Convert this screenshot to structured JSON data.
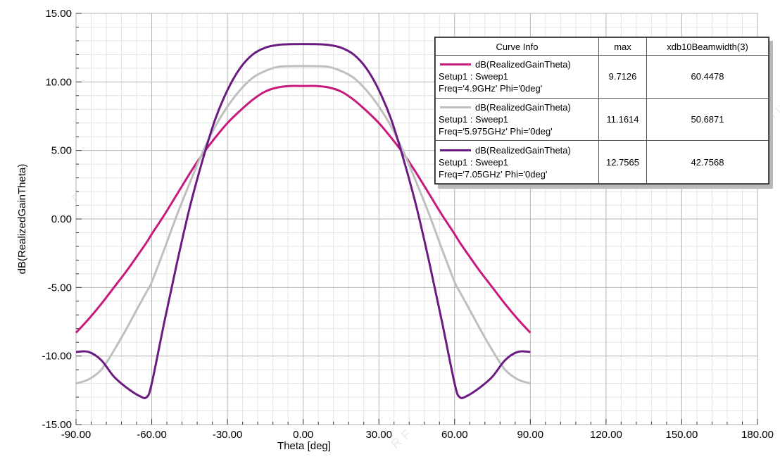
{
  "chart_data": {
    "type": "line",
    "xlabel": "Theta [deg]",
    "ylabel": "dB(RealizedGainTheta)",
    "xlim": [
      -90,
      180
    ],
    "ylim": [
      -15,
      15
    ],
    "xticks": [
      "-90.00",
      "-60.00",
      "-30.00",
      "0.00",
      "30.00",
      "60.00",
      "90.00",
      "120.00",
      "150.00",
      "180.00"
    ],
    "yticks": [
      "15.00",
      "10.00",
      "5.00",
      "0.00",
      "-5.00",
      "-10.00",
      "-15.00"
    ],
    "x": [
      -90,
      -85,
      -80,
      -75,
      -70,
      -65,
      -62,
      -60,
      -55,
      -50,
      -45,
      -40,
      -35,
      -30,
      -25,
      -20,
      -15,
      -10,
      -5,
      0,
      5,
      10,
      15,
      20,
      25,
      30,
      35,
      40,
      45,
      50,
      55,
      60,
      62,
      65,
      70,
      75,
      80,
      85,
      90
    ],
    "grid": true,
    "series": [
      {
        "name": "dB(RealizedGainTheta) Setup1 : Sweep1 Freq='4.9GHz' Phi='0deg'",
        "color": "#c8197d",
        "values": [
          -8.3,
          -7.3,
          -6.2,
          -5.0,
          -3.8,
          -2.5,
          -1.7,
          -1.1,
          0.3,
          1.8,
          3.3,
          4.7,
          5.9,
          7.0,
          7.9,
          8.7,
          9.3,
          9.6,
          9.7,
          9.7,
          9.7,
          9.6,
          9.3,
          8.7,
          7.9,
          7.0,
          5.9,
          4.7,
          3.3,
          1.8,
          0.3,
          -1.1,
          -1.7,
          -2.5,
          -3.8,
          -5.0,
          -6.2,
          -7.3,
          -8.3
        ]
      },
      {
        "name": "dB(RealizedGainTheta) Setup1 : Sweep1 Freq='5.975GHz' Phi='0deg'",
        "color": "#bfbfbf",
        "values": [
          -12.0,
          -11.7,
          -11.0,
          -9.6,
          -8.0,
          -6.3,
          -5.3,
          -4.6,
          -2.2,
          0.3,
          2.6,
          4.8,
          6.7,
          8.2,
          9.4,
          10.3,
          10.8,
          11.1,
          11.15,
          11.16,
          11.15,
          11.1,
          10.8,
          10.3,
          9.4,
          8.2,
          6.7,
          4.8,
          2.6,
          0.3,
          -2.2,
          -4.6,
          -5.3,
          -6.3,
          -8.0,
          -9.6,
          -11.0,
          -11.7,
          -12.0
        ]
      },
      {
        "name": "dB(RealizedGainTheta) Setup1 : Sweep1 Freq='7.05GHz' Phi='0deg'",
        "color": "#6a1a80",
        "values": [
          -9.7,
          -9.7,
          -10.3,
          -11.5,
          -12.3,
          -12.9,
          -13.0,
          -12.0,
          -7.5,
          -3.2,
          0.8,
          4.2,
          7.2,
          9.4,
          11.0,
          12.0,
          12.5,
          12.7,
          12.75,
          12.76,
          12.75,
          12.7,
          12.5,
          12.0,
          11.0,
          9.4,
          7.2,
          4.2,
          0.8,
          -3.2,
          -7.5,
          -12.0,
          -13.0,
          -12.9,
          -12.3,
          -11.5,
          -10.3,
          -9.7,
          -9.7
        ]
      }
    ]
  },
  "legend": {
    "headers": {
      "curve": "Curve Info",
      "max": "max",
      "beam": "xdb10Beamwidth(3)"
    },
    "rows": [
      {
        "color": "#c8197d",
        "line1": "dB(RealizedGainTheta)",
        "line2": "Setup1 : Sweep1",
        "line3": "Freq='4.9GHz' Phi='0deg'",
        "max": "9.7126",
        "beam": "60.4478"
      },
      {
        "color": "#bfbfbf",
        "line1": "dB(RealizedGainTheta)",
        "line2": "Setup1 : Sweep1",
        "line3": "Freq='5.975GHz' Phi='0deg'",
        "max": "11.1614",
        "beam": "50.6871"
      },
      {
        "color": "#6a1a80",
        "line1": "dB(RealizedGainTheta)",
        "line2": "Setup1 : Sweep1",
        "line3": "Freq='7.05GHz' Phi='0deg'",
        "max": "12.7565",
        "beam": "42.7568"
      }
    ]
  },
  "watermark": {
    "brand": "RF MISO",
    "tagline": "RF Microwave Solution"
  }
}
